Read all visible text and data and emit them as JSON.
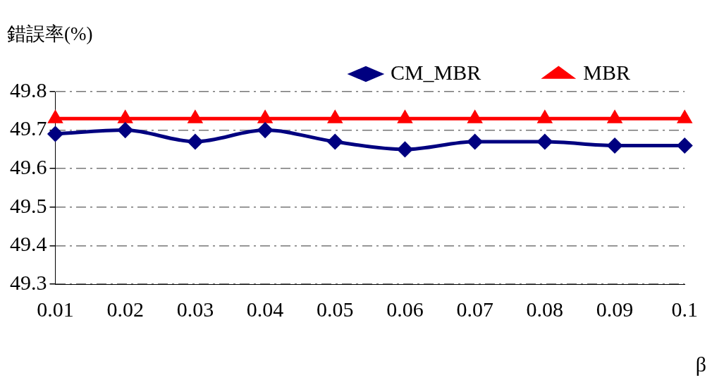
{
  "chart_data": {
    "type": "line",
    "ylabel": "錯誤率(%)",
    "xlabel": "β",
    "categories": [
      "0.01",
      "0.02",
      "0.03",
      "0.04",
      "0.05",
      "0.06",
      "0.07",
      "0.08",
      "0.09",
      "0.1"
    ],
    "series": [
      {
        "name": "CM_MBR",
        "color": "#000080",
        "marker": "diamond",
        "values": [
          49.69,
          49.7,
          49.67,
          49.7,
          49.67,
          49.65,
          49.67,
          49.67,
          49.66,
          49.66
        ]
      },
      {
        "name": "MBR",
        "color": "#ff0000",
        "marker": "triangle",
        "values": [
          49.73,
          49.73,
          49.73,
          49.73,
          49.73,
          49.73,
          49.73,
          49.73,
          49.73,
          49.73
        ]
      }
    ],
    "ylim": [
      49.3,
      49.8
    ],
    "yticks": [
      49.3,
      49.4,
      49.5,
      49.6,
      49.7,
      49.8
    ],
    "grid": "y",
    "legend": "top",
    "line_style": "solid"
  }
}
